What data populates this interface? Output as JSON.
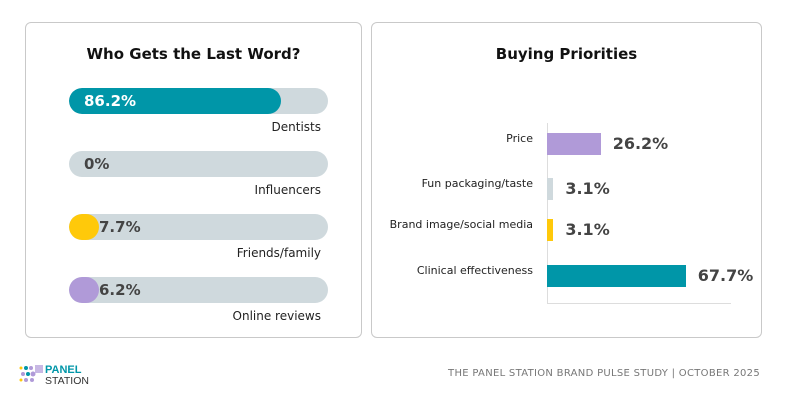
{
  "chart_data": [
    {
      "type": "bar",
      "orientation": "horizontal-progress",
      "title": "Who Gets the Last Word?",
      "categories": [
        "Dentists",
        "Influencers",
        "Friends/family",
        "Online reviews"
      ],
      "values": [
        86.2,
        0,
        7.7,
        6.2
      ],
      "labels": [
        "86.2%",
        "0%",
        "7.7%",
        "6.2%"
      ],
      "colors": [
        "#0096a8",
        "#cfd9dd",
        "#ffc90a",
        "#b09ad8"
      ],
      "xlim": [
        0,
        100
      ]
    },
    {
      "type": "bar",
      "orientation": "horizontal",
      "title": "Buying Priorities",
      "categories": [
        "Price",
        "Fun packaging/taste",
        "Brand image/social media",
        "Clinical effectiveness"
      ],
      "values": [
        26.2,
        3.1,
        3.1,
        67.7
      ],
      "labels": [
        "26.2%",
        "3.1%",
        "3.1%",
        "67.7%"
      ],
      "colors": [
        "#b09ad8",
        "#cfd9dd",
        "#ffc90a",
        "#0096a8"
      ],
      "xlim": [
        0,
        90
      ]
    }
  ],
  "footer": "THE PANEL STATION BRAND PULSE STUDY | OCTOBER 2025",
  "logo": {
    "line1": "PANEL",
    "line2": "STATION"
  }
}
